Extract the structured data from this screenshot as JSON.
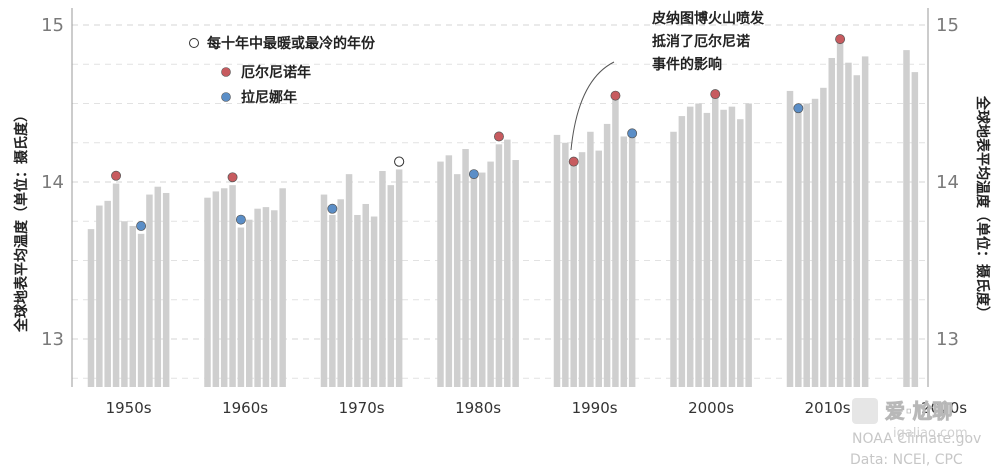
{
  "chart_data": {
    "type": "bar",
    "title": "",
    "left_ylabel": "全球地表平均温度（单位：摄氏度）",
    "right_ylabel": "全球地表平均温度（单位：摄氏度）",
    "ylim": [
      12.7,
      15.05
    ],
    "yticks": [
      13,
      14,
      15
    ],
    "grid": true,
    "legend_position": "top-left",
    "legend": [
      {
        "key": "extreme",
        "label": "每十年中最暖或最冷的年份",
        "color": "#ffffff"
      },
      {
        "key": "elnino",
        "label": "厄尔尼诺年",
        "color": "#c75b5f"
      },
      {
        "key": "lanina",
        "label": "拉尼娜年",
        "color": "#5b8ec7"
      }
    ],
    "decades": [
      "1950s",
      "1960s",
      "1970s",
      "1980s",
      "1990s",
      "2000s",
      "2010s",
      "2020s"
    ],
    "years": [
      1950,
      1951,
      1952,
      1953,
      1954,
      1955,
      1956,
      1957,
      1958,
      1959,
      1960,
      1961,
      1962,
      1963,
      1964,
      1965,
      1966,
      1967,
      1968,
      1969,
      1970,
      1971,
      1972,
      1973,
      1974,
      1975,
      1976,
      1977,
      1978,
      1979,
      1980,
      1981,
      1982,
      1983,
      1984,
      1985,
      1986,
      1987,
      1988,
      1989,
      1990,
      1991,
      1992,
      1993,
      1994,
      1995,
      1996,
      1997,
      1998,
      1999,
      2000,
      2001,
      2002,
      2003,
      2004,
      2005,
      2006,
      2007,
      2008,
      2009,
      2010,
      2011,
      2012,
      2013,
      2014,
      2015,
      2016,
      2017,
      2018,
      2019,
      2020,
      2021
    ],
    "values": [
      13.7,
      13.85,
      13.88,
      13.99,
      13.75,
      13.72,
      13.67,
      13.92,
      13.97,
      13.93,
      13.9,
      13.94,
      13.96,
      13.98,
      13.71,
      13.76,
      13.83,
      13.84,
      13.82,
      13.96,
      13.92,
      13.79,
      13.89,
      14.05,
      13.79,
      13.86,
      13.78,
      14.07,
      13.98,
      14.08,
      14.13,
      14.17,
      14.05,
      14.21,
      14.04,
      14.06,
      14.13,
      14.24,
      14.27,
      14.14,
      14.3,
      14.25,
      14.13,
      14.19,
      14.32,
      14.2,
      14.37,
      14.54,
      14.29,
      14.29,
      14.32,
      14.42,
      14.48,
      14.5,
      14.44,
      14.55,
      14.46,
      14.48,
      14.4,
      14.5,
      14.58,
      14.46,
      14.5,
      14.53,
      14.6,
      14.79,
      14.9,
      14.76,
      14.68,
      14.8,
      14.84,
      14.7
    ],
    "markers": [
      {
        "year": 1953,
        "value": 14.04,
        "kind": "elnino"
      },
      {
        "year": 1956,
        "value": 13.72,
        "kind": "lanina"
      },
      {
        "year": 1963,
        "value": 14.03,
        "kind": "elnino"
      },
      {
        "year": 1964,
        "value": 13.76,
        "kind": "lanina"
      },
      {
        "year": 1971,
        "value": 13.83,
        "kind": "lanina"
      },
      {
        "year": 1979,
        "value": 14.13,
        "kind": "extreme"
      },
      {
        "year": 1984,
        "value": 14.05,
        "kind": "lanina"
      },
      {
        "year": 1987,
        "value": 14.29,
        "kind": "elnino"
      },
      {
        "year": 1992,
        "value": 14.13,
        "kind": "elnino"
      },
      {
        "year": 1997,
        "value": 14.55,
        "kind": "elnino"
      },
      {
        "year": 1999,
        "value": 14.31,
        "kind": "lanina"
      },
      {
        "year": 2005,
        "value": 14.56,
        "kind": "elnino"
      },
      {
        "year": 2011,
        "value": 14.47,
        "kind": "lanina"
      },
      {
        "year": 2016,
        "value": 14.91,
        "kind": "elnino"
      }
    ],
    "annotation": {
      "lines": [
        "皮纳图博火山喷发",
        "抵消了厄尔尼诺",
        "事件的影响"
      ],
      "target_year": 1992
    }
  },
  "credit": {
    "source_label": "Data: NCEI, CPC",
    "logo_text": "NOAA Climate.gov"
  },
  "watermark": {
    "title": "爱·尬聊",
    "url": "igaliao.com"
  },
  "colors": {
    "bar": "#cfcfcf",
    "grid": "#e2e2e2",
    "axis": "#9a9a9a",
    "elnino": "#c75b5f",
    "lanina": "#5b8ec7"
  }
}
